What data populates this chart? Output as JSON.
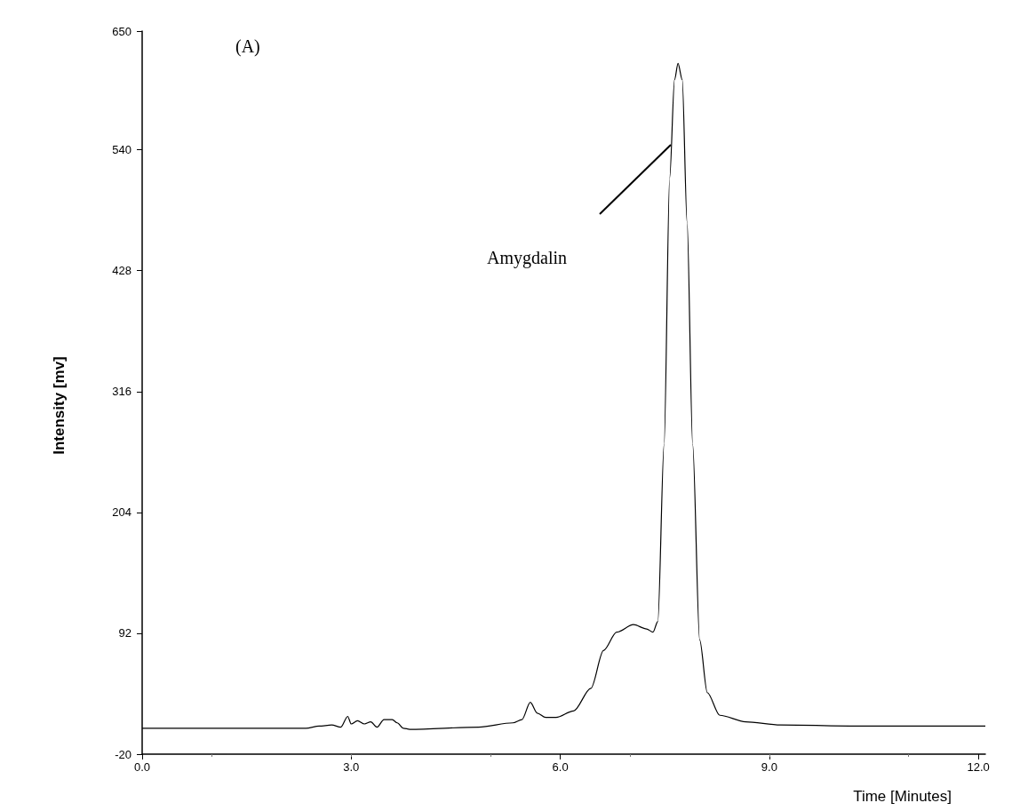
{
  "chart_data": {
    "type": "line",
    "xlabel": "Time [Minutes]",
    "ylabel": "Intensity [mv]",
    "annotations": [
      "(A)",
      "Amygdalin"
    ],
    "xlim": [
      0,
      12.1
    ],
    "xticks": [
      {
        "value": 0,
        "label": "0.0"
      },
      {
        "value": 3,
        "label": "3.0"
      },
      {
        "value": 6,
        "label": "6.0"
      },
      {
        "value": 9,
        "label": "9.0"
      },
      {
        "value": 12,
        "label": "12.0"
      }
    ],
    "ylim": [
      -20,
      650
    ],
    "yticks": [
      -20,
      92,
      204,
      316,
      428,
      540,
      650
    ],
    "grid": false,
    "marker": "none",
    "line_style": "solid",
    "series": [
      {
        "color": "#000000",
        "x": [
          0,
          2.35,
          2.54,
          2.72,
          2.85,
          2.95,
          3.0,
          3.09,
          3.19,
          3.28,
          3.37,
          3.47,
          3.59,
          3.66,
          3.75,
          3.84,
          4.83,
          5.32,
          5.45,
          5.57,
          5.67,
          5.79,
          5.94,
          6.19,
          6.44,
          6.62,
          6.81,
          7.05,
          7.24,
          7.33,
          7.4,
          7.49,
          7.57,
          7.64,
          7.69,
          7.75,
          7.82,
          7.9,
          8.0,
          8.11,
          8.29,
          8.66,
          9.16,
          10.4,
          11.63,
          12.1
        ],
        "values": [
          4,
          4,
          6,
          7,
          5,
          15,
          8,
          11,
          8,
          10,
          5,
          12,
          12,
          9,
          4,
          3,
          5,
          9,
          12,
          28,
          18,
          14,
          14,
          20,
          41,
          76,
          93,
          100,
          96,
          93,
          103,
          267,
          514,
          605,
          620,
          605,
          473,
          267,
          86,
          37,
          16,
          10,
          7,
          6,
          6,
          6
        ]
      }
    ]
  }
}
